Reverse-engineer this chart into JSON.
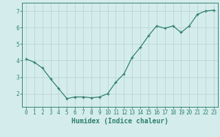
{
  "x": [
    0,
    1,
    2,
    3,
    4,
    5,
    6,
    7,
    8,
    9,
    10,
    11,
    12,
    13,
    14,
    15,
    16,
    17,
    18,
    19,
    20,
    21,
    22,
    23
  ],
  "y": [
    4.1,
    3.9,
    3.55,
    2.9,
    2.3,
    1.7,
    1.8,
    1.8,
    1.75,
    1.8,
    2.0,
    2.7,
    3.2,
    4.2,
    4.8,
    5.5,
    6.1,
    5.95,
    6.1,
    5.7,
    6.1,
    6.8,
    7.0,
    7.05
  ],
  "line_color": "#2e7d6e",
  "marker": "+",
  "markersize": 3.5,
  "linewidth": 0.9,
  "markeredgewidth": 0.9,
  "xlabel": "Humidex (Indice chaleur)",
  "xlim": [
    -0.5,
    23.5
  ],
  "ylim": [
    1.2,
    7.5
  ],
  "yticks": [
    2,
    3,
    4,
    5,
    6,
    7
  ],
  "xticks": [
    0,
    1,
    2,
    3,
    4,
    5,
    6,
    7,
    8,
    9,
    10,
    11,
    12,
    13,
    14,
    15,
    16,
    17,
    18,
    19,
    20,
    21,
    22,
    23
  ],
  "xtick_labels": [
    "0",
    "1",
    "2",
    "3",
    "4",
    "5",
    "6",
    "7",
    "8",
    "9",
    "10",
    "11",
    "12",
    "13",
    "14",
    "15",
    "16",
    "17",
    "18",
    "19",
    "20",
    "21",
    "22",
    "23"
  ],
  "bg_color": "#d4edec",
  "grid_color": "#b8d4d0",
  "tick_fontsize": 5.5,
  "xlabel_fontsize": 7,
  "text_color": "#2e7d6e",
  "axis_color": "#2e7d6e"
}
